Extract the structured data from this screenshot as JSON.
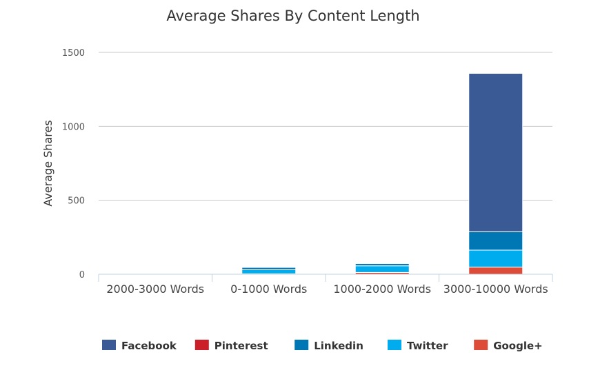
{
  "chart_data": {
    "type": "bar",
    "stacked": true,
    "title": "Average Shares By Content Length",
    "xlabel": "",
    "ylabel": "Average Shares",
    "ylim": [
      0,
      1500
    ],
    "yticks": [
      "0",
      "500",
      "1000",
      "1500"
    ],
    "categories": [
      "2000-3000 Words",
      "0-1000 Words",
      "1000-2000 Words",
      "3000-10000 Words"
    ],
    "series": [
      {
        "name": "Facebook",
        "color": "#3a5a96",
        "values": [
          0,
          0,
          0,
          1070
        ]
      },
      {
        "name": "Pinterest",
        "color": "#cb2027",
        "values": [
          0,
          0,
          0,
          0
        ]
      },
      {
        "name": "Linkedin",
        "color": "#0077b5",
        "values": [
          0,
          15,
          15,
          125
        ]
      },
      {
        "name": "Twitter",
        "color": "#00aced",
        "values": [
          0,
          28,
          45,
          115
        ]
      },
      {
        "name": "Google+",
        "color": "#dd4b39",
        "values": [
          0,
          3,
          12,
          48
        ]
      }
    ],
    "grid": true,
    "legend_position": "bottom"
  }
}
